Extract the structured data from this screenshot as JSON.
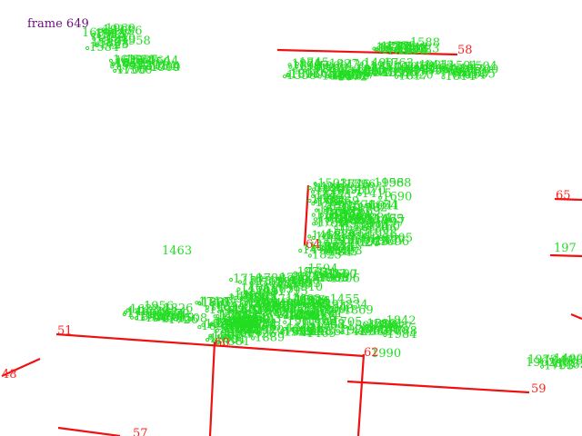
{
  "frame_label": "frame 649",
  "red_labels": [
    "51",
    "48",
    "57",
    "60",
    "62",
    "59",
    "64",
    "58",
    "65",
    "197"
  ],
  "green_labels": [
    "1463",
    "1956",
    "1990",
    "1962",
    "1972",
    "1624",
    "1596",
    "1600",
    "1441",
    "1525",
    "1589",
    "1606"
  ],
  "colors": {
    "segment": "#ee1111",
    "track": "#22dd22",
    "frame": "#6a0d7a"
  }
}
